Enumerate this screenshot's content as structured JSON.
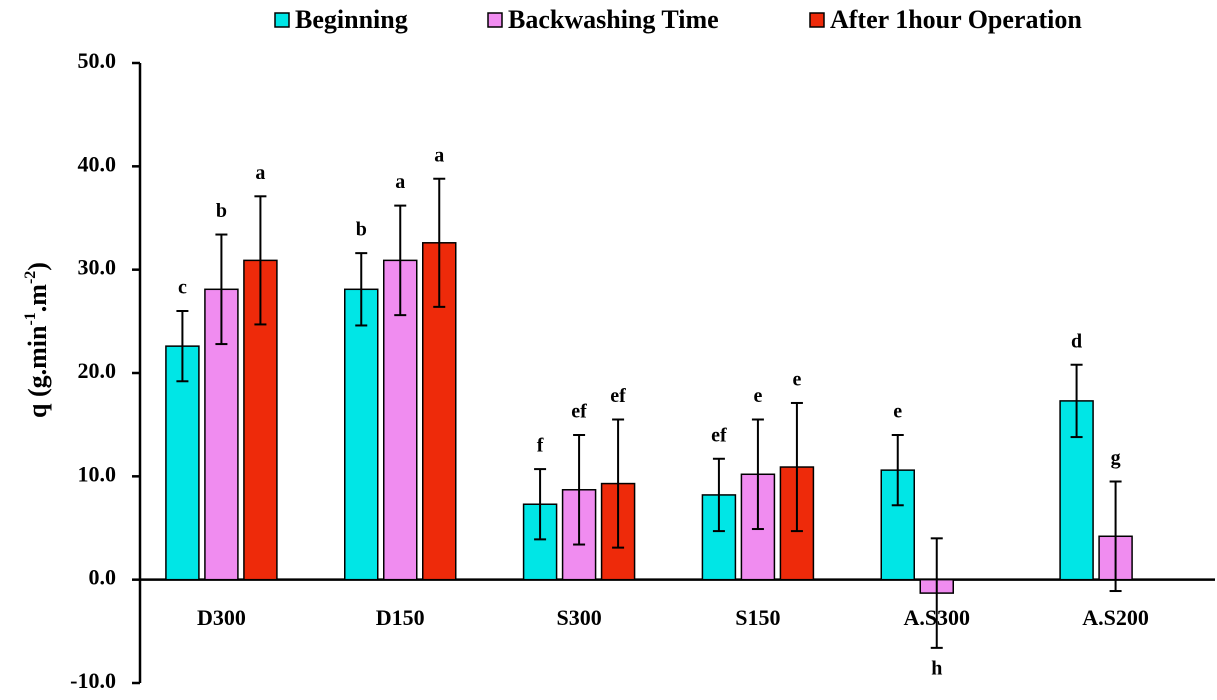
{
  "chart_data": {
    "type": "bar",
    "ylabel_parts": [
      "q (g.min",
      "-1",
      ".m",
      "-2",
      ")"
    ],
    "categories": [
      "D300",
      "D150",
      "S300",
      "S150",
      "A.S300",
      "A.S200"
    ],
    "series": [
      {
        "name": "Beginning",
        "color": "#00e6e6",
        "values": [
          22.6,
          28.1,
          7.3,
          8.2,
          10.6,
          17.3
        ],
        "errors": [
          3.4,
          3.5,
          3.4,
          3.5,
          3.4,
          3.5
        ],
        "letters": [
          "c",
          "b",
          "f",
          "ef",
          "e",
          "d"
        ]
      },
      {
        "name": "Backwashing Time",
        "color": "#f08cf0",
        "values": [
          28.1,
          30.9,
          8.7,
          10.2,
          -1.3,
          4.2
        ],
        "errors": [
          5.3,
          5.3,
          5.3,
          5.3,
          5.3,
          5.3
        ],
        "letters": [
          "b",
          "a",
          "ef",
          "e",
          "h",
          "g"
        ]
      },
      {
        "name": "After 1hour Operation",
        "color": "#ee2a0a",
        "values": [
          30.9,
          32.6,
          9.3,
          10.9,
          null,
          null
        ],
        "errors": [
          6.2,
          6.2,
          6.2,
          6.2,
          null,
          null
        ],
        "letters": [
          "a",
          "a",
          "ef",
          "e",
          null,
          null
        ]
      }
    ],
    "ylim": [
      -10,
      50
    ],
    "yticks": [
      {
        "value": -10,
        "label": "-10.0"
      },
      {
        "value": 0,
        "label": "0.0"
      },
      {
        "value": 10,
        "label": "10.0"
      },
      {
        "value": 20,
        "label": "20.0"
      },
      {
        "value": 30,
        "label": "30.0"
      },
      {
        "value": 40,
        "label": "40.0"
      },
      {
        "value": 50,
        "label": "50.0"
      }
    ]
  }
}
